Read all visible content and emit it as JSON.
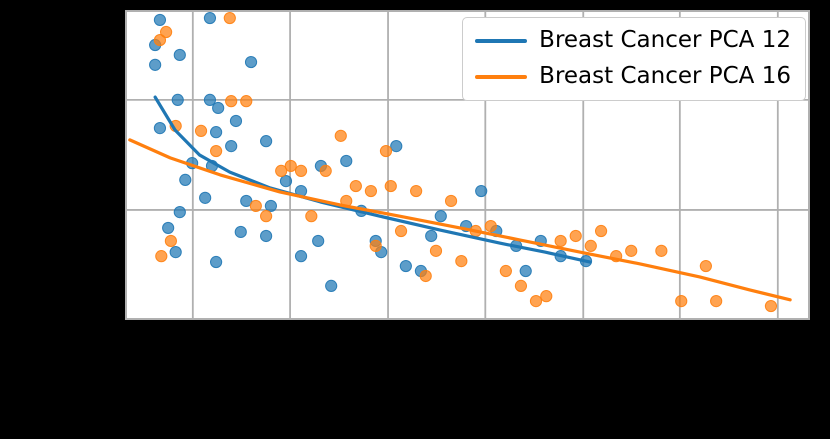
{
  "figure": {
    "background": "#000000",
    "plot_background": "#ffffff"
  },
  "legend": {
    "position": "upper right",
    "entries": [
      {
        "label": "Breast Cancer PCA 12",
        "color": "#1f77b4"
      },
      {
        "label": "Breast Cancer PCA 16",
        "color": "#ff7f0e"
      }
    ]
  },
  "chart_data": {
    "type": "scatter",
    "title": "",
    "xlabel": "",
    "ylabel": "",
    "xlim": [
      0,
      1
    ],
    "ylim": [
      0,
      1
    ],
    "grid": {
      "on": true,
      "color": "#b0b0b0",
      "x": [
        0.099,
        0.241,
        0.384,
        0.526,
        0.669,
        0.81,
        0.953
      ],
      "y": [
        0.355,
        0.71
      ]
    },
    "marker": {
      "radius": 5.6,
      "opacity": 0.72
    },
    "series": [
      {
        "name": "Breast Cancer PCA 12",
        "color": "#1f77b4",
        "points": [
          [
            0.051,
            0.968
          ],
          [
            0.044,
            0.887
          ],
          [
            0.044,
            0.823
          ],
          [
            0.08,
            0.855
          ],
          [
            0.124,
            0.974
          ],
          [
            0.077,
            0.71
          ],
          [
            0.051,
            0.619
          ],
          [
            0.124,
            0.71
          ],
          [
            0.136,
            0.684
          ],
          [
            0.088,
            0.452
          ],
          [
            0.098,
            0.506
          ],
          [
            0.08,
            0.348
          ],
          [
            0.063,
            0.297
          ],
          [
            0.074,
            0.219
          ],
          [
            0.117,
            0.394
          ],
          [
            0.133,
            0.606
          ],
          [
            0.127,
            0.497
          ],
          [
            0.155,
            0.561
          ],
          [
            0.162,
            0.642
          ],
          [
            0.184,
            0.832
          ],
          [
            0.206,
            0.577
          ],
          [
            0.169,
            0.284
          ],
          [
            0.133,
            0.187
          ],
          [
            0.177,
            0.384
          ],
          [
            0.213,
            0.368
          ],
          [
            0.235,
            0.448
          ],
          [
            0.257,
            0.416
          ],
          [
            0.286,
            0.497
          ],
          [
            0.282,
            0.255
          ],
          [
            0.301,
            0.11
          ],
          [
            0.323,
            0.513
          ],
          [
            0.345,
            0.352
          ],
          [
            0.366,
            0.255
          ],
          [
            0.374,
            0.219
          ],
          [
            0.396,
            0.561
          ],
          [
            0.41,
            0.174
          ],
          [
            0.432,
            0.158
          ],
          [
            0.447,
            0.271
          ],
          [
            0.461,
            0.335
          ],
          [
            0.498,
            0.303
          ],
          [
            0.52,
            0.416
          ],
          [
            0.542,
            0.287
          ],
          [
            0.571,
            0.239
          ],
          [
            0.585,
            0.158
          ],
          [
            0.607,
            0.255
          ],
          [
            0.636,
            0.206
          ],
          [
            0.673,
            0.19
          ],
          [
            0.257,
            0.206
          ],
          [
            0.206,
            0.271
          ]
        ],
        "trend": [
          [
            0.044,
            0.719
          ],
          [
            0.073,
            0.613
          ],
          [
            0.109,
            0.532
          ],
          [
            0.153,
            0.477
          ],
          [
            0.212,
            0.426
          ],
          [
            0.285,
            0.381
          ],
          [
            0.372,
            0.335
          ],
          [
            0.46,
            0.29
          ],
          [
            0.547,
            0.248
          ],
          [
            0.613,
            0.219
          ],
          [
            0.679,
            0.187
          ]
        ]
      },
      {
        "name": "Breast Cancer PCA 16",
        "color": "#ff7f0e",
        "points": [
          [
            0.153,
            0.974
          ],
          [
            0.051,
            0.903
          ],
          [
            0.06,
            0.929
          ],
          [
            0.074,
            0.626
          ],
          [
            0.053,
            0.206
          ],
          [
            0.067,
            0.255
          ],
          [
            0.111,
            0.61
          ],
          [
            0.133,
            0.545
          ],
          [
            0.155,
            0.706
          ],
          [
            0.177,
            0.706
          ],
          [
            0.191,
            0.368
          ],
          [
            0.206,
            0.335
          ],
          [
            0.228,
            0.481
          ],
          [
            0.242,
            0.497
          ],
          [
            0.257,
            0.481
          ],
          [
            0.272,
            0.335
          ],
          [
            0.293,
            0.481
          ],
          [
            0.315,
            0.594
          ],
          [
            0.323,
            0.384
          ],
          [
            0.337,
            0.432
          ],
          [
            0.359,
            0.416
          ],
          [
            0.366,
            0.239
          ],
          [
            0.381,
            0.545
          ],
          [
            0.388,
            0.432
          ],
          [
            0.403,
            0.287
          ],
          [
            0.425,
            0.416
          ],
          [
            0.439,
            0.142
          ],
          [
            0.454,
            0.223
          ],
          [
            0.476,
            0.384
          ],
          [
            0.491,
            0.19
          ],
          [
            0.512,
            0.287
          ],
          [
            0.534,
            0.303
          ],
          [
            0.556,
            0.158
          ],
          [
            0.578,
            0.11
          ],
          [
            0.6,
            0.061
          ],
          [
            0.615,
            0.077
          ],
          [
            0.636,
            0.255
          ],
          [
            0.658,
            0.271
          ],
          [
            0.68,
            0.239
          ],
          [
            0.695,
            0.287
          ],
          [
            0.717,
            0.206
          ],
          [
            0.739,
            0.223
          ],
          [
            0.783,
            0.223
          ],
          [
            0.812,
            0.061
          ],
          [
            0.848,
            0.174
          ],
          [
            0.863,
            0.061
          ],
          [
            0.943,
            0.045
          ]
        ],
        "trend": [
          [
            0.007,
            0.581
          ],
          [
            0.066,
            0.523
          ],
          [
            0.139,
            0.468
          ],
          [
            0.226,
            0.413
          ],
          [
            0.314,
            0.371
          ],
          [
            0.401,
            0.335
          ],
          [
            0.489,
            0.297
          ],
          [
            0.577,
            0.258
          ],
          [
            0.664,
            0.219
          ],
          [
            0.752,
            0.181
          ],
          [
            0.839,
            0.139
          ],
          [
            0.912,
            0.097
          ],
          [
            0.971,
            0.065
          ]
        ]
      }
    ]
  }
}
